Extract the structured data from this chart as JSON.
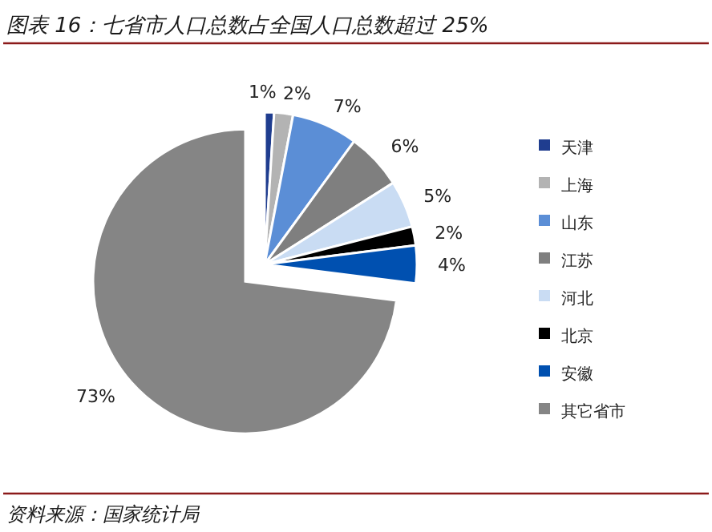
{
  "chart_data": {
    "type": "pie",
    "title": "图表 16：七省市人口总数占全国人口总数超过 25%",
    "categories": [
      "天津",
      "上海",
      "山东",
      "江苏",
      "河北",
      "北京",
      "安徽",
      "其它省市"
    ],
    "values": [
      1,
      2,
      7,
      6,
      5,
      2,
      4,
      73
    ],
    "colors": [
      "#1f3d8f",
      "#b3b3b3",
      "#5b8ed6",
      "#7f7f7f",
      "#c9dcf3",
      "#000000",
      "#0050b0",
      "#858585"
    ],
    "value_labels": [
      "1%",
      "2%",
      "7%",
      "6%",
      "5%",
      "2%",
      "4%",
      "73%"
    ],
    "legend": "right",
    "annotations": [
      "资料来源：国家统计局"
    ]
  }
}
